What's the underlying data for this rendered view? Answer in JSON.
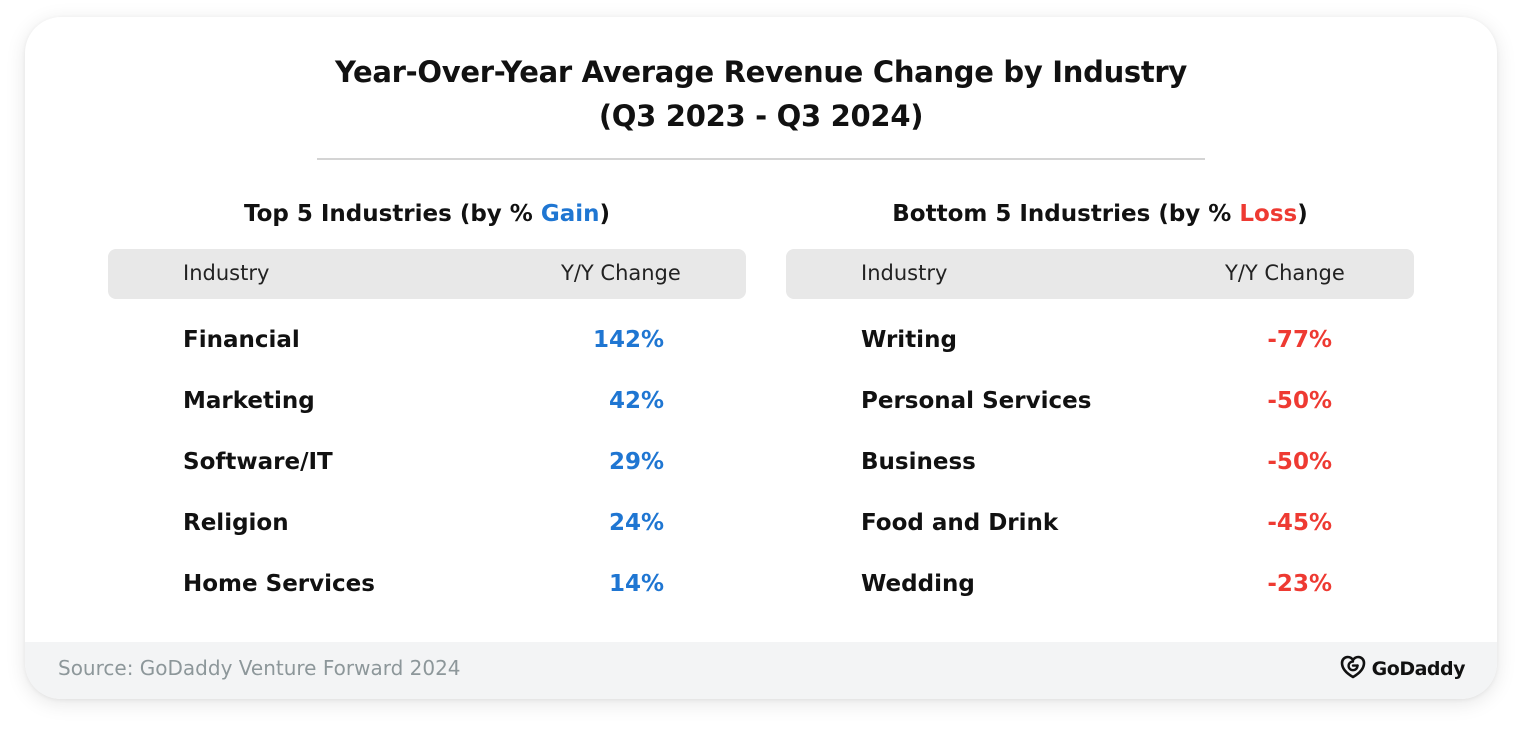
{
  "title_line1": "Year-Over-Year Average Revenue Change by Industry",
  "title_line2": "(Q3 2023 - Q3 2024)",
  "colors": {
    "gain": "#1f76d2",
    "loss": "#ee3a32"
  },
  "top": {
    "heading_prefix": "Top 5 Industries (by % ",
    "heading_accent": "Gain",
    "heading_suffix": ")",
    "col_industry": "Industry",
    "col_change": "Y/Y Change",
    "rows": [
      {
        "industry": "Financial",
        "change": "142%"
      },
      {
        "industry": "Marketing",
        "change": "42%"
      },
      {
        "industry": "Software/IT",
        "change": "29%"
      },
      {
        "industry": "Religion",
        "change": "24%"
      },
      {
        "industry": "Home Services",
        "change": "14%"
      }
    ]
  },
  "bottom": {
    "heading_prefix": "Bottom 5 Industries (by % ",
    "heading_accent": "Loss",
    "heading_suffix": ")",
    "col_industry": "Industry",
    "col_change": "Y/Y Change",
    "rows": [
      {
        "industry": "Writing",
        "change": "-77%"
      },
      {
        "industry": "Personal Services",
        "change": "-50%"
      },
      {
        "industry": "Business",
        "change": "-50%"
      },
      {
        "industry": "Food and Drink",
        "change": "-45%"
      },
      {
        "industry": "Wedding",
        "change": "-23%"
      }
    ]
  },
  "chart_data": {
    "type": "table",
    "title": "Year-Over-Year Average Revenue Change by Industry (Q3 2023 - Q3 2024)",
    "tables": [
      {
        "heading": "Top 5 Industries (by % Gain)",
        "columns": [
          "Industry",
          "Y/Y Change"
        ],
        "rows": [
          [
            "Financial",
            142
          ],
          [
            "Marketing",
            42
          ],
          [
            "Software/IT",
            29
          ],
          [
            "Religion",
            24
          ],
          [
            "Home Services",
            14
          ]
        ]
      },
      {
        "heading": "Bottom 5 Industries (by % Loss)",
        "columns": [
          "Industry",
          "Y/Y Change"
        ],
        "rows": [
          [
            "Writing",
            -77
          ],
          [
            "Personal Services",
            -50
          ],
          [
            "Business",
            -50
          ],
          [
            "Food and Drink",
            -45
          ],
          [
            "Wedding",
            -23
          ]
        ]
      }
    ]
  },
  "footer": {
    "source": "Source: GoDaddy Venture Forward 2024",
    "logo_text": "GoDaddy",
    "logo_icon": "godaddy-logo-icon"
  }
}
